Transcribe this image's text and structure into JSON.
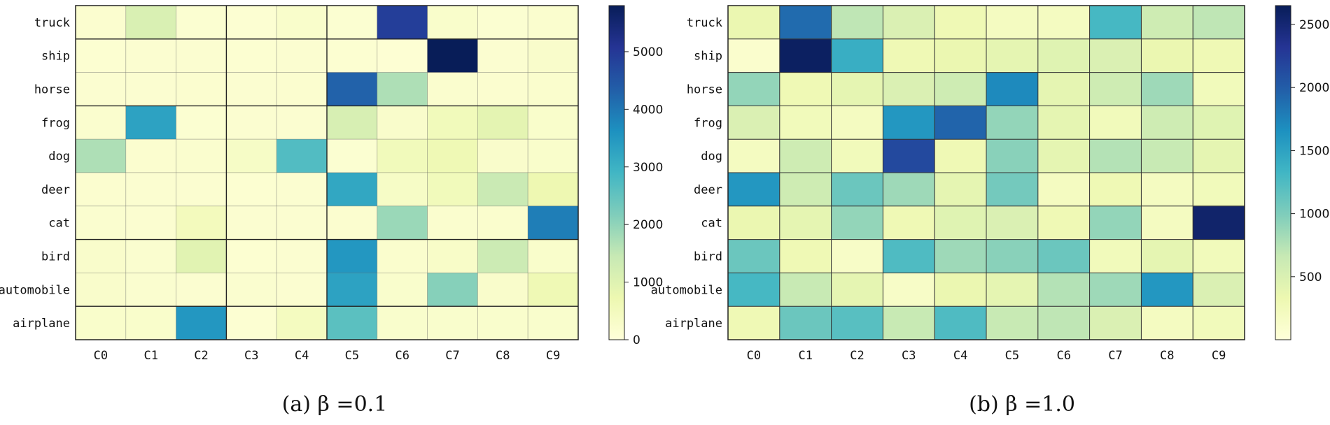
{
  "chart_data": [
    {
      "type": "heatmap",
      "title": "",
      "caption": "(a) β =0.1",
      "xlabel": "",
      "ylabel": "",
      "x_categories": [
        "C0",
        "C1",
        "C2",
        "C3",
        "C4",
        "C5",
        "C6",
        "C7",
        "C8",
        "C9"
      ],
      "y_categories": [
        "truck",
        "ship",
        "horse",
        "frog",
        "dog",
        "deer",
        "cat",
        "bird",
        "automobile",
        "airplane"
      ],
      "values": [
        [
          180,
          1100,
          150,
          120,
          250,
          150,
          4900,
          250,
          150,
          200
        ],
        [
          140,
          160,
          160,
          140,
          160,
          140,
          100,
          5800,
          160,
          260
        ],
        [
          160,
          160,
          180,
          160,
          180,
          4300,
          1700,
          200,
          180,
          220
        ],
        [
          200,
          3300,
          150,
          160,
          160,
          1150,
          260,
          550,
          900,
          250
        ],
        [
          1700,
          180,
          200,
          350,
          2700,
          150,
          550,
          650,
          260,
          250
        ],
        [
          180,
          160,
          160,
          140,
          160,
          3200,
          350,
          550,
          1400,
          700
        ],
        [
          190,
          170,
          500,
          160,
          160,
          180,
          1900,
          200,
          220,
          3900
        ],
        [
          260,
          190,
          950,
          140,
          160,
          3500,
          220,
          300,
          1350,
          250
        ],
        [
          260,
          190,
          160,
          190,
          160,
          3300,
          230,
          2100,
          260,
          650
        ],
        [
          250,
          250,
          3500,
          130,
          450,
          2600,
          240,
          240,
          240,
          240
        ]
      ],
      "colorbar": {
        "min": 0,
        "max": 5800,
        "ticks": [
          0,
          1000,
          2000,
          3000,
          4000,
          5000
        ]
      },
      "colormap": [
        "#ffffd9",
        "#edf8b1",
        "#c7e9b4",
        "#7fcdbb",
        "#41b6c4",
        "#1d91c0",
        "#225ea8",
        "#253494",
        "#081d58"
      ],
      "grid_lines": true
    },
    {
      "type": "heatmap",
      "title": "",
      "caption": "(b) β =1.0",
      "xlabel": "",
      "ylabel": "",
      "x_categories": [
        "C0",
        "C1",
        "C2",
        "C3",
        "C4",
        "C5",
        "C6",
        "C7",
        "C8",
        "C9"
      ],
      "y_categories": [
        "truck",
        "ship",
        "horse",
        "frog",
        "dog",
        "deer",
        "cat",
        "bird",
        "automobile",
        "airplane"
      ],
      "values": [
        [
          350,
          1900,
          700,
          500,
          300,
          200,
          200,
          1300,
          600,
          700
        ],
        [
          100,
          2600,
          1400,
          300,
          350,
          400,
          450,
          500,
          350,
          300
        ],
        [
          900,
          300,
          400,
          500,
          600,
          1700,
          400,
          600,
          850,
          250
        ],
        [
          500,
          250,
          200,
          1600,
          1950,
          900,
          400,
          250,
          600,
          450
        ],
        [
          200,
          600,
          250,
          2150,
          300,
          950,
          400,
          750,
          650,
          400
        ],
        [
          1600,
          600,
          1100,
          850,
          400,
          1050,
          200,
          300,
          200,
          250
        ],
        [
          350,
          400,
          900,
          300,
          450,
          500,
          300,
          900,
          200,
          2550
        ],
        [
          1100,
          300,
          150,
          1250,
          850,
          950,
          1100,
          250,
          400,
          250
        ],
        [
          1300,
          650,
          400,
          150,
          350,
          400,
          750,
          850,
          1600,
          500
        ],
        [
          300,
          1100,
          1200,
          650,
          1250,
          650,
          700,
          500,
          200,
          250
        ]
      ],
      "colorbar": {
        "min": 0,
        "max": 2650,
        "ticks": [
          500,
          1000,
          1500,
          2000,
          2500
        ]
      },
      "colormap": [
        "#ffffd9",
        "#edf8b1",
        "#c7e9b4",
        "#7fcdbb",
        "#41b6c4",
        "#1d91c0",
        "#225ea8",
        "#253494",
        "#081d58"
      ],
      "grid_lines": true
    }
  ]
}
